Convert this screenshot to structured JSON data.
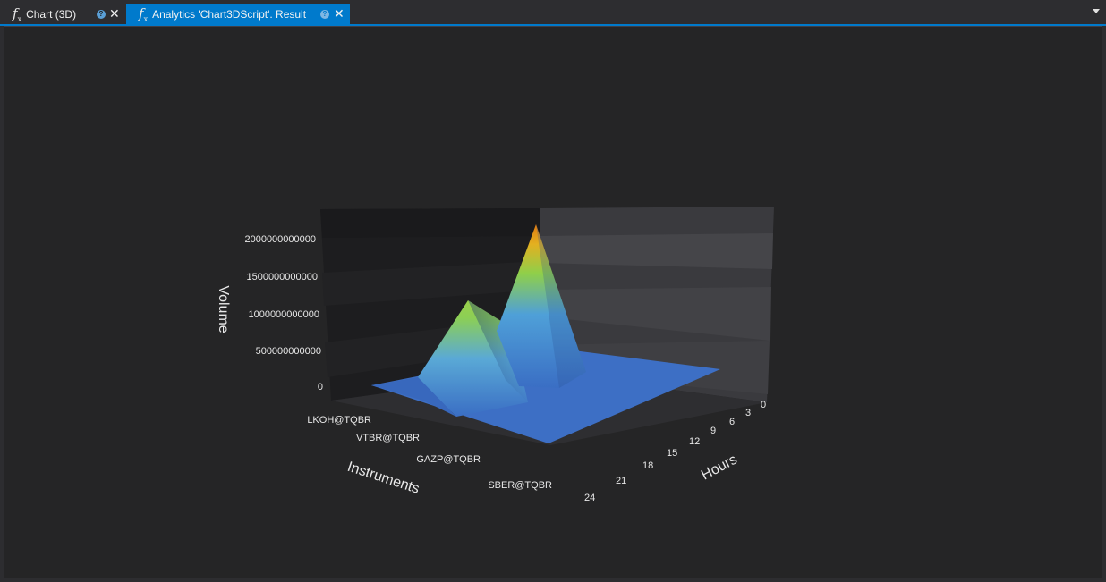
{
  "tabs": [
    {
      "label": "Chart (3D)",
      "icon": "fx-icon",
      "active": false
    },
    {
      "label": "Analytics 'Chart3DScript'. Result",
      "icon": "fx-icon",
      "active": true
    }
  ],
  "colors": {
    "accent": "#007acc",
    "background": "#252526",
    "text": "#e8e8e8"
  },
  "chart_data": {
    "type": "surface3d",
    "title": "",
    "zlabel": "Volume",
    "xlabel": "Instruments",
    "ylabel": "Hours",
    "z_ticks": [
      "2000000000000",
      "1500000000000",
      "1000000000000",
      "500000000000",
      "0"
    ],
    "z_range": [
      0,
      2200000000000
    ],
    "instruments": [
      "LKOH@TQBR",
      "VTBR@TQBR",
      "GAZP@TQBR",
      "SBER@TQBR"
    ],
    "hour_ticks": [
      "0",
      "3",
      "6",
      "9",
      "12",
      "15",
      "18",
      "21",
      "24"
    ],
    "hour_range": [
      0,
      24
    ],
    "peaks": [
      {
        "instrument": "VTBR@TQBR",
        "hour": 15,
        "volume": 1100000000000
      },
      {
        "instrument": "GAZP@TQBR",
        "hour": 9,
        "volume": 2100000000000
      }
    ]
  }
}
